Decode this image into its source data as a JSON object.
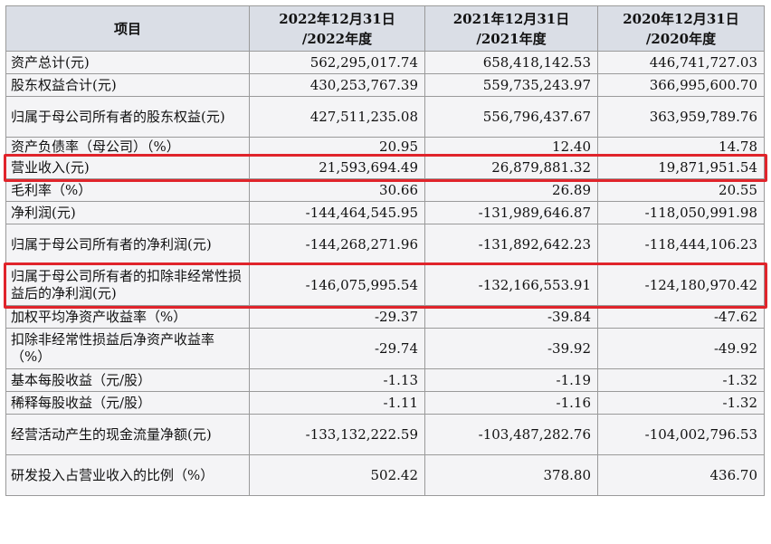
{
  "headers": [
    "项目",
    "2022年12月31日/2022年度",
    "2021年12月31日/2021年度",
    "2020年12月31日/2020年度"
  ],
  "header_lines": [
    [
      "项目"
    ],
    [
      "2022年12月31日",
      "/2022年度"
    ],
    [
      "2021年12月31日",
      "/2021年度"
    ],
    [
      "2020年12月31日",
      "/2020年度"
    ]
  ],
  "rows": [
    {
      "label": "资产总计(元)",
      "values": [
        "562,295,017.74",
        "658,418,142.53",
        "446,741,727.03"
      ]
    },
    {
      "label": "股东权益合计(元)",
      "values": [
        "430,253,767.39",
        "559,735,243.97",
        "366,995,600.70"
      ]
    },
    {
      "label": "归属于母公司所有者的股东权益(元)",
      "values": [
        "427,511,235.08",
        "556,796,437.67",
        "363,959,789.76"
      ]
    },
    {
      "label": "资产负债率（母公司）（%）",
      "values": [
        "20.95",
        "12.40",
        "14.78"
      ]
    },
    {
      "label": "营业收入(元)",
      "values": [
        "21,593,694.49",
        "26,879,881.32",
        "19,871,951.54"
      ],
      "highlighted": true
    },
    {
      "label": "毛利率（%）",
      "values": [
        "30.66",
        "26.89",
        "20.55"
      ]
    },
    {
      "label": "净利润(元)",
      "values": [
        "-144,464,545.95",
        "-131,989,646.87",
        "-118,050,991.98"
      ]
    },
    {
      "label": "归属于母公司所有者的净利润(元)",
      "values": [
        "-144,268,271.96",
        "-131,892,642.23",
        "-118,444,106.23"
      ]
    },
    {
      "label": "归属于母公司所有者的扣除非经常性损益后的净利润(元)",
      "values": [
        "-146,075,995.54",
        "-132,166,553.91",
        "-124,180,970.42"
      ],
      "highlighted": true
    },
    {
      "label": "加权平均净资产收益率（%）",
      "values": [
        "-29.37",
        "-39.84",
        "-47.62"
      ]
    },
    {
      "label": "扣除非经常性损益后净资产收益率（%）",
      "values": [
        "-29.74",
        "-39.92",
        "-49.92"
      ]
    },
    {
      "label": "基本每股收益（元/股）",
      "values": [
        "-1.13",
        "-1.19",
        "-1.32"
      ]
    },
    {
      "label": "稀释每股收益（元/股）",
      "values": [
        "-1.11",
        "-1.16",
        "-1.32"
      ]
    },
    {
      "label": "经营活动产生的现金流量净额(元)",
      "values": [
        "-133,132,222.59",
        "-103,487,282.76",
        "-104,002,796.53"
      ]
    },
    {
      "label": "研发投入占营业收入的比例（%）",
      "values": [
        "502.42",
        "378.80",
        "436.70"
      ]
    }
  ],
  "colors": {
    "header_bg": "#dadee6",
    "row_bg": "#f4f4f6",
    "highlight_border": "#e0242b",
    "grid": "#9a9a9a"
  }
}
